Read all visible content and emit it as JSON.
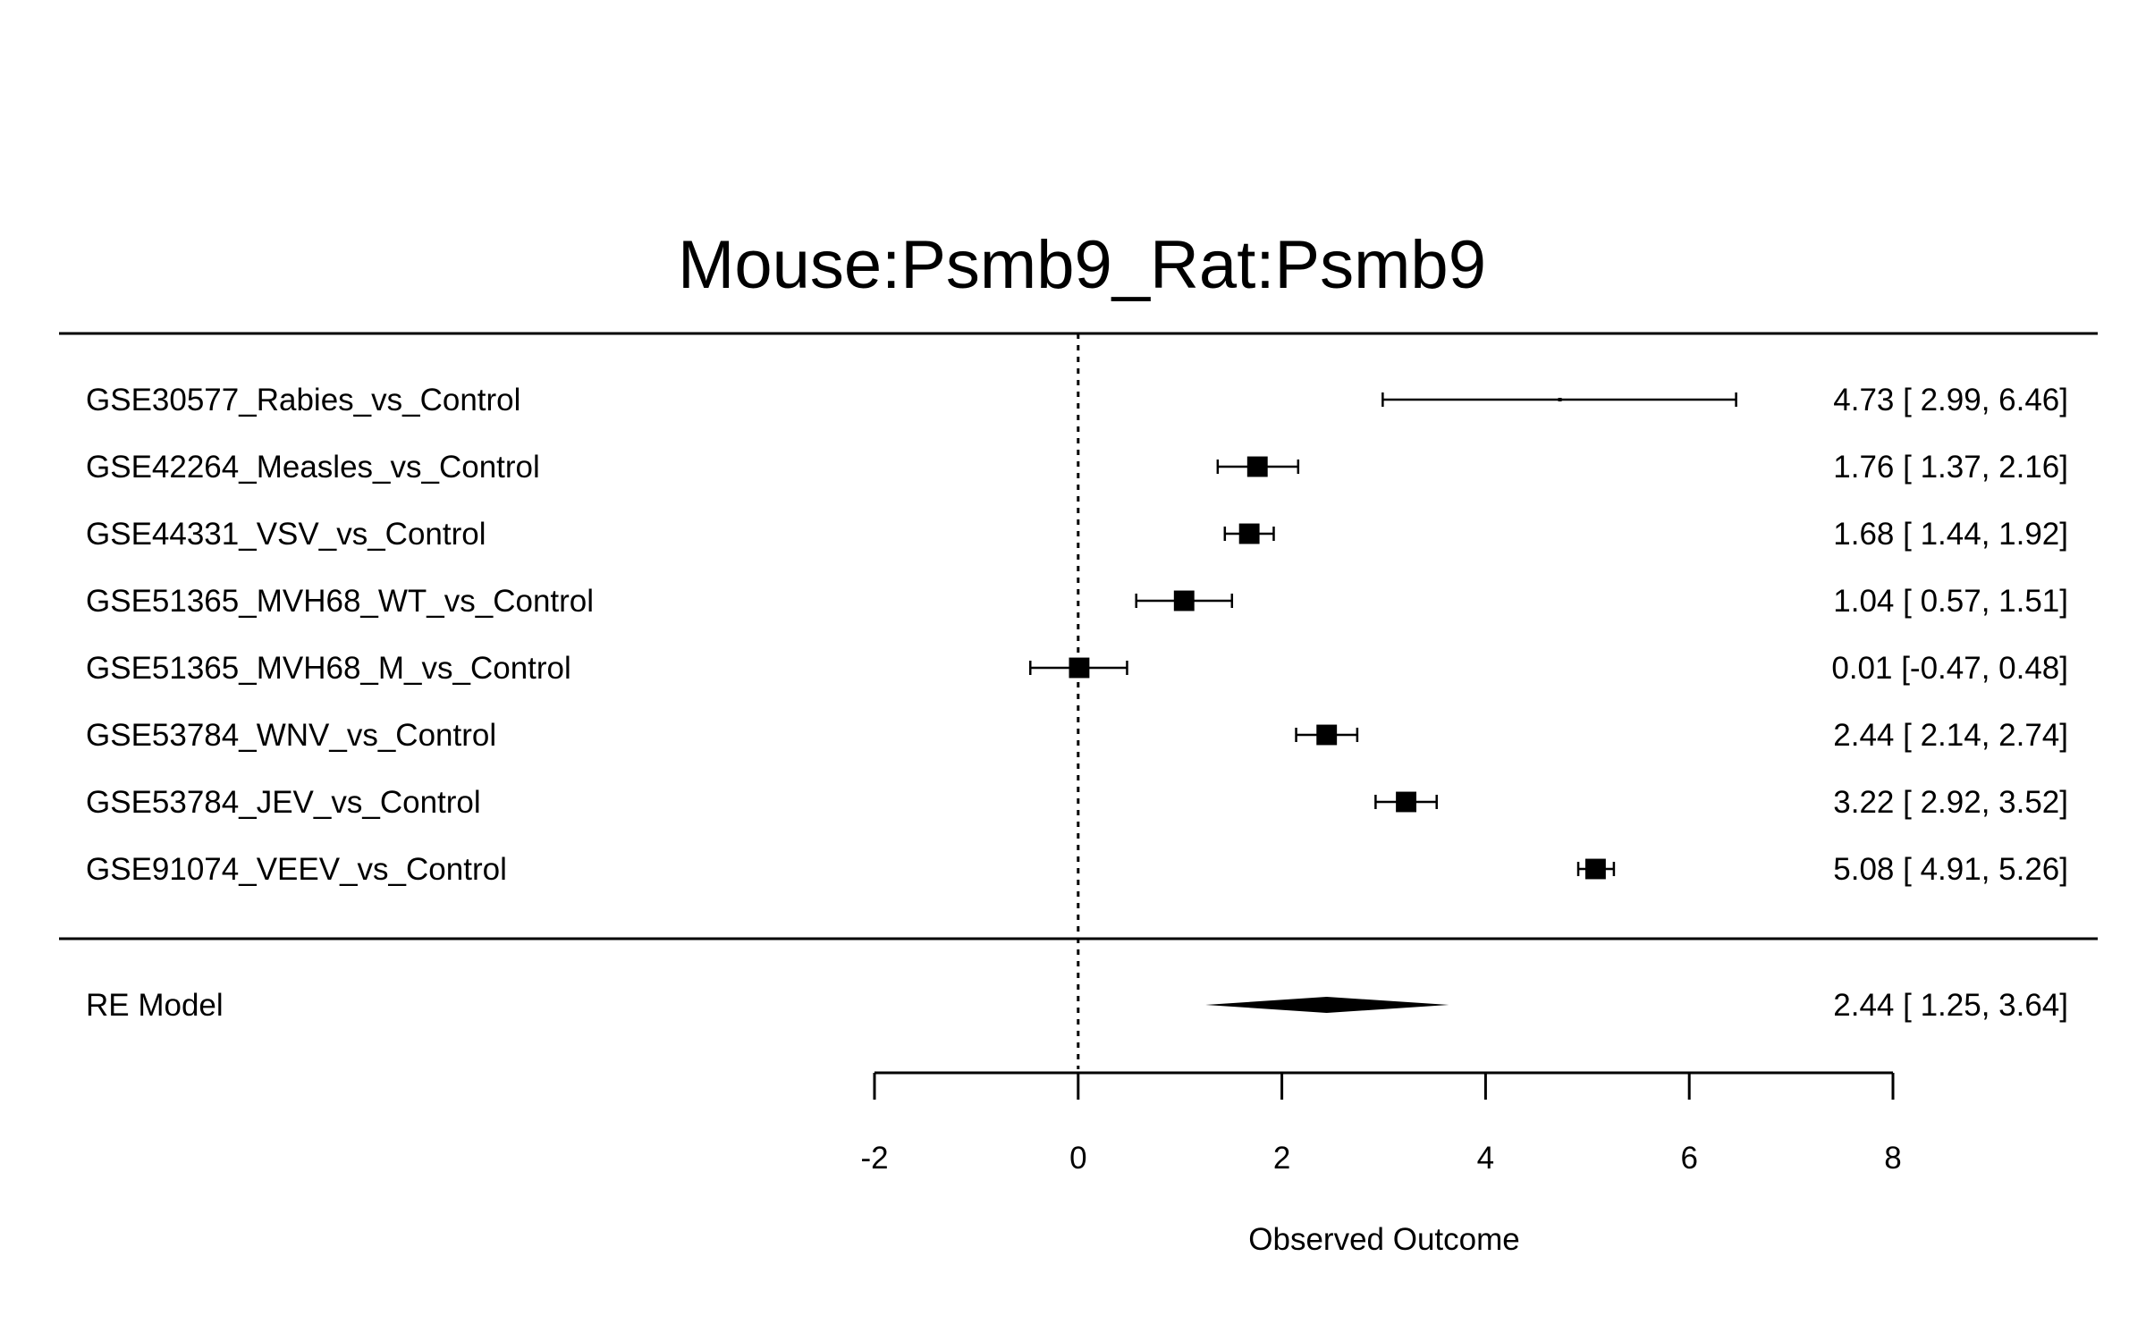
{
  "chart_data": {
    "type": "forest",
    "title": "Mouse:Psmb9_Rat:Psmb9",
    "xlabel": "Observed Outcome",
    "xlim": [
      -2,
      8
    ],
    "xticks": [
      "-2",
      "0",
      "2",
      "4",
      "6",
      "8"
    ],
    "reference_line": 0,
    "studies": [
      {
        "label": "GSE30577_Rabies_vs_Control",
        "estimate": 4.73,
        "ci_low": 2.99,
        "ci_high": 6.46,
        "text": "4.73 [ 2.99, 6.46]",
        "weight": 0.15
      },
      {
        "label": "GSE42264_Measles_vs_Control",
        "estimate": 1.76,
        "ci_low": 1.37,
        "ci_high": 2.16,
        "text": "1.76 [ 1.37, 2.16]",
        "weight": 0.88
      },
      {
        "label": "GSE44331_VSV_vs_Control",
        "estimate": 1.68,
        "ci_low": 1.44,
        "ci_high": 1.92,
        "text": "1.68 [ 1.44, 1.92]",
        "weight": 0.88
      },
      {
        "label": "GSE51365_MVH68_WT_vs_Control",
        "estimate": 1.04,
        "ci_low": 0.57,
        "ci_high": 1.51,
        "text": "1.04 [ 0.57, 1.51]",
        "weight": 0.88
      },
      {
        "label": "GSE51365_MVH68_M_vs_Control",
        "estimate": 0.01,
        "ci_low": -0.47,
        "ci_high": 0.48,
        "text": "0.01 [-0.47, 0.48]",
        "weight": 0.88
      },
      {
        "label": "GSE53784_WNV_vs_Control",
        "estimate": 2.44,
        "ci_low": 2.14,
        "ci_high": 2.74,
        "text": "2.44 [ 2.14, 2.74]",
        "weight": 0.88
      },
      {
        "label": "GSE53784_JEV_vs_Control",
        "estimate": 3.22,
        "ci_low": 2.92,
        "ci_high": 3.52,
        "text": "3.22 [ 2.92, 3.52]",
        "weight": 0.88
      },
      {
        "label": "GSE91074_VEEV_vs_Control",
        "estimate": 5.08,
        "ci_low": 4.91,
        "ci_high": 5.26,
        "text": "5.08 [ 4.91, 5.26]",
        "weight": 0.88
      }
    ],
    "summary": {
      "label": "RE Model",
      "estimate": 2.44,
      "ci_low": 1.25,
      "ci_high": 3.64,
      "text": "2.44 [ 1.25, 3.64]"
    }
  }
}
